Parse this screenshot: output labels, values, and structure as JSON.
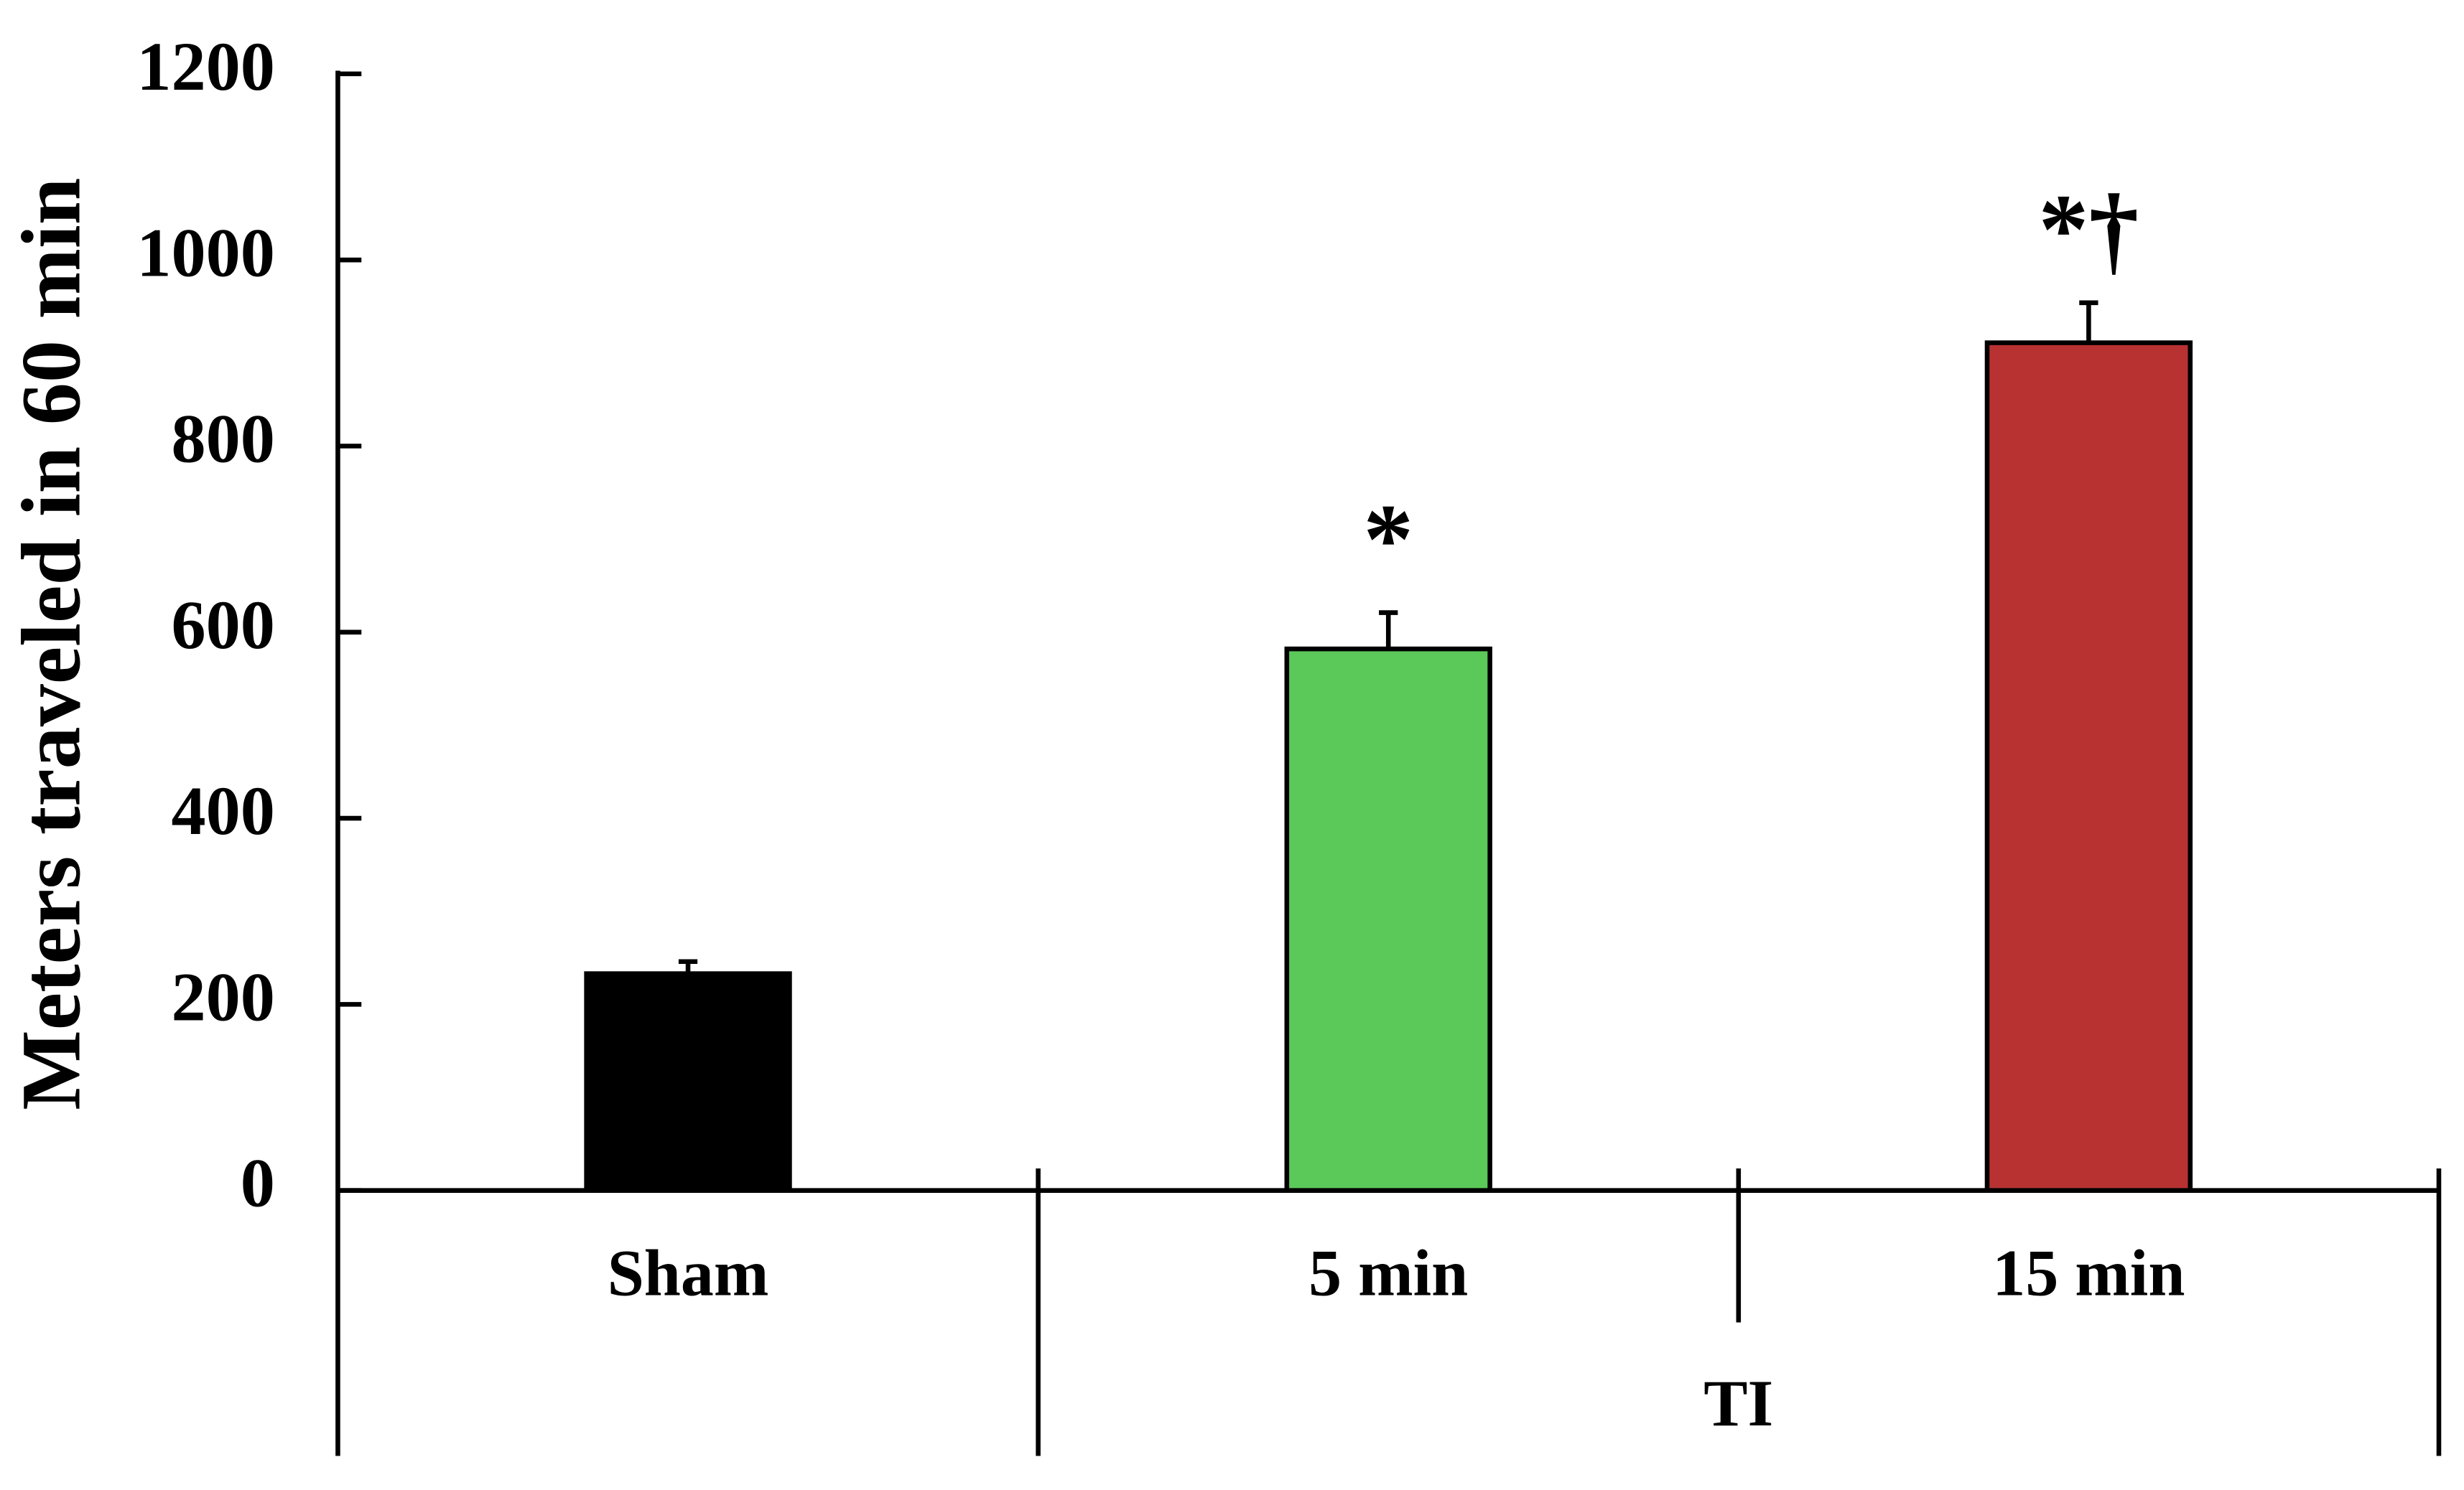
{
  "chart_data": {
    "type": "bar",
    "ylabel": "Meters traveled in 60 min",
    "categories": [
      "Sham",
      "5 min",
      "15 min"
    ],
    "values": [
      233,
      582,
      911
    ],
    "errors": [
      13,
      39,
      43
    ],
    "colors": [
      "#000000",
      "#5bc85a",
      "#b83232"
    ],
    "significance": [
      null,
      "*",
      "*†"
    ],
    "group_label": "TI",
    "ylim": [
      0,
      1200
    ],
    "yticks": [
      0,
      200,
      400,
      600,
      800,
      1000,
      1200
    ]
  }
}
